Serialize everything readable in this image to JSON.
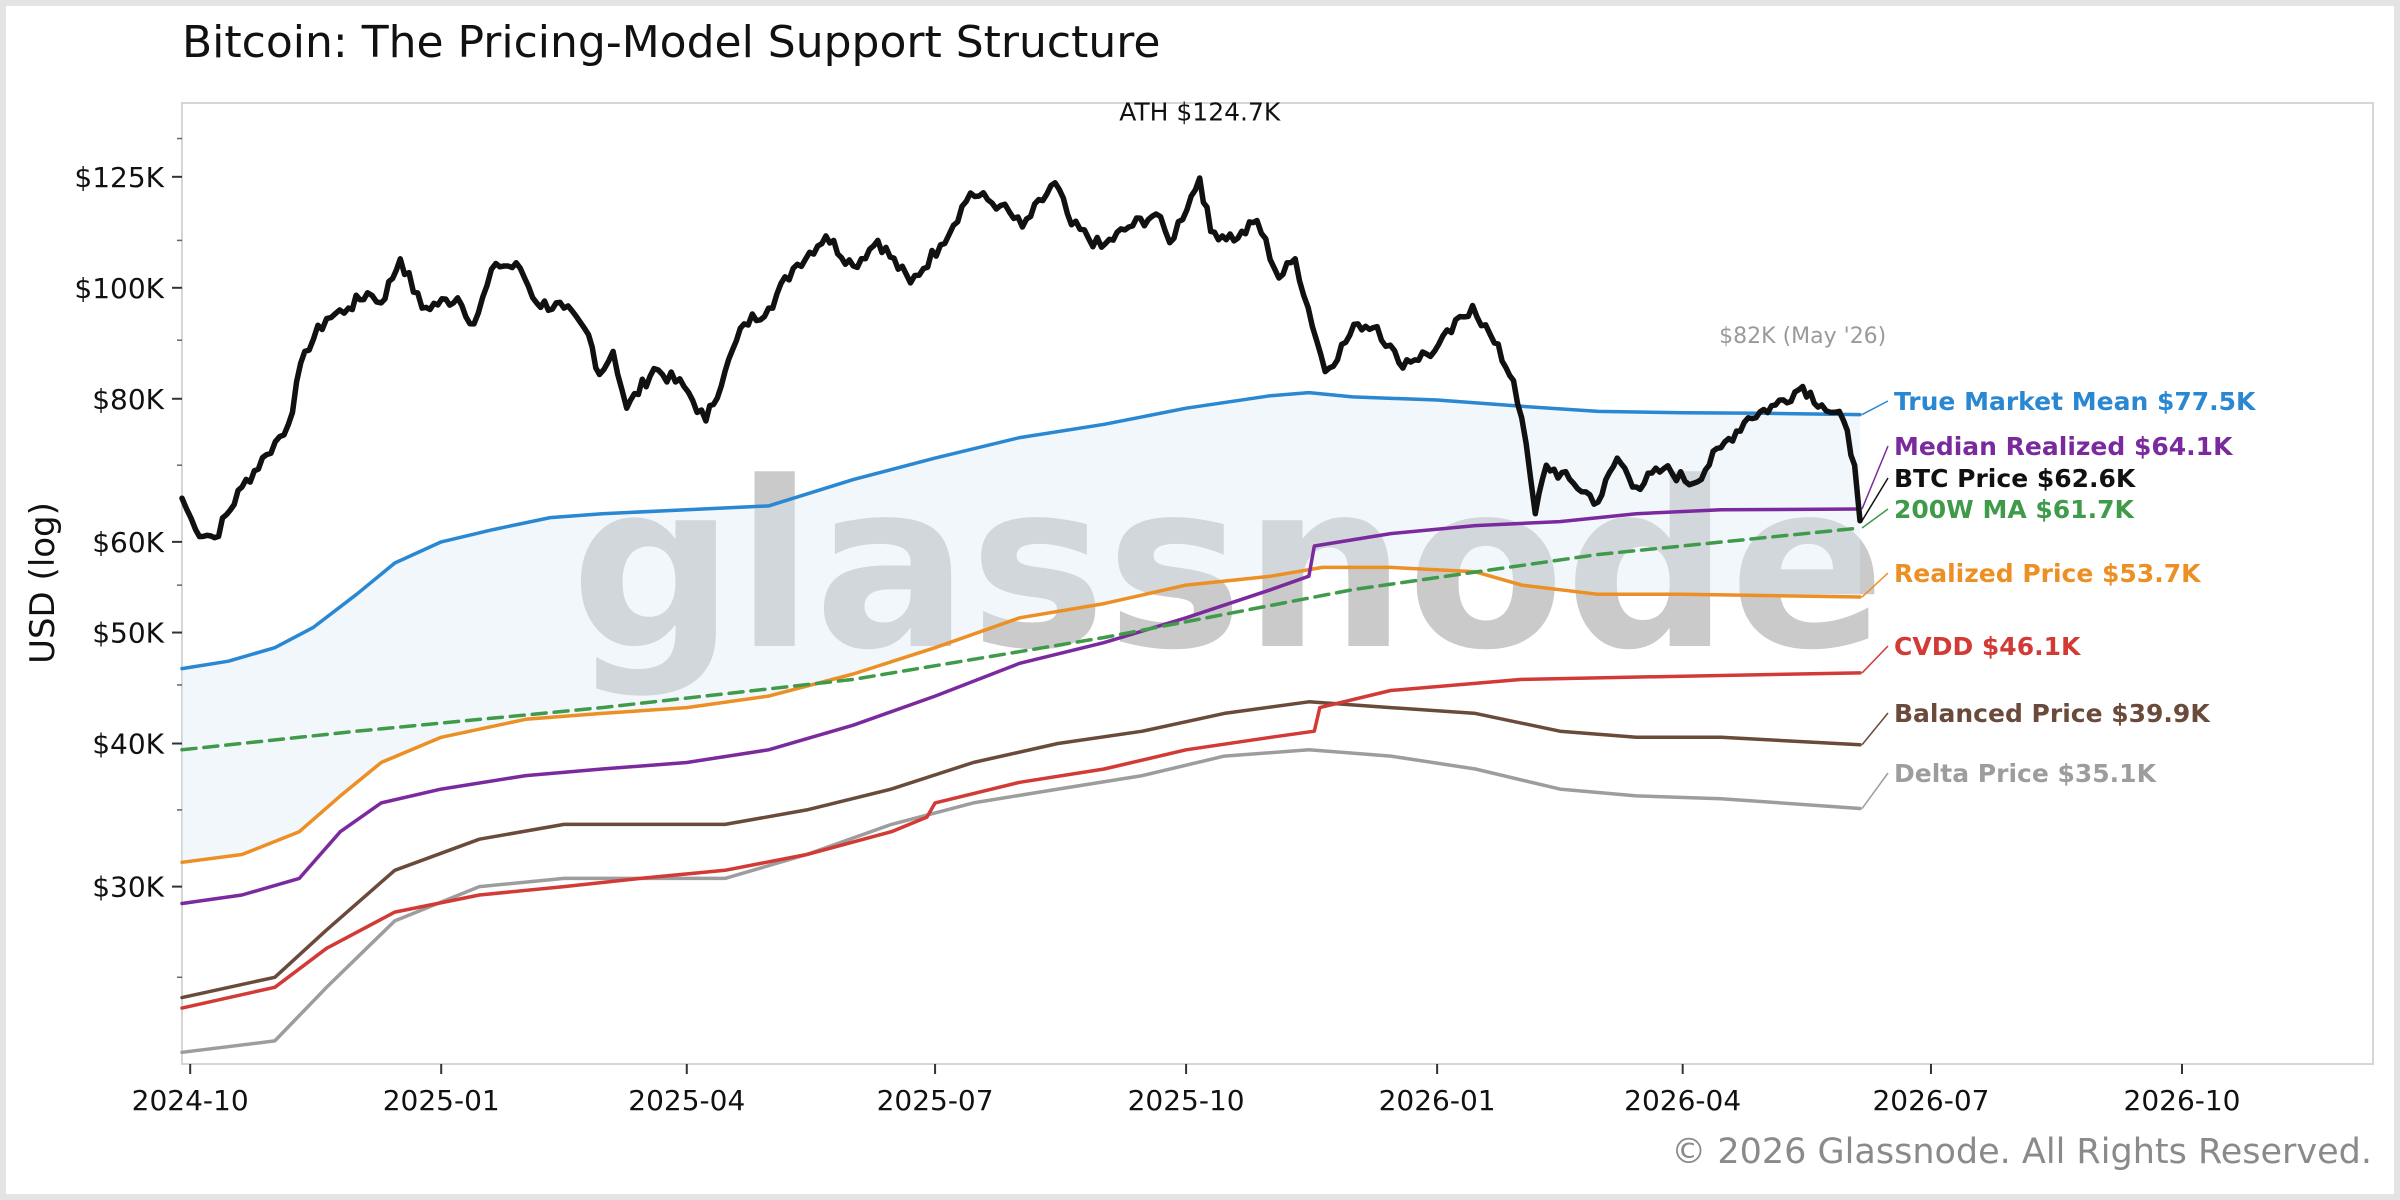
{
  "chart_data": {
    "type": "line",
    "title": "Bitcoin: The Pricing-Model Support Structure",
    "ylabel": "USD (log)",
    "xlabel": "",
    "y_scale": "log",
    "ylim": [
      21000,
      145000
    ],
    "xlim": [
      "2024-09-28",
      "2026-12-10"
    ],
    "grid": false,
    "watermark": "glassnode",
    "copyright": "© 2026 Glassnode. All Rights Reserved.",
    "y_ticks": [
      {
        "value": 30000,
        "label": "$30K"
      },
      {
        "value": 40000,
        "label": "$40K"
      },
      {
        "value": 50000,
        "label": "$50K"
      },
      {
        "value": 60000,
        "label": "$60K"
      },
      {
        "value": 80000,
        "label": "$80K"
      },
      {
        "value": 100000,
        "label": "$100K"
      },
      {
        "value": 125000,
        "label": "$125K"
      }
    ],
    "x_ticks": [
      {
        "date": "2024-10-01",
        "label": "2024-10"
      },
      {
        "date": "2025-01-01",
        "label": "2025-01"
      },
      {
        "date": "2025-04-01",
        "label": "2025-04"
      },
      {
        "date": "2025-07-01",
        "label": "2025-07"
      },
      {
        "date": "2025-10-01",
        "label": "2025-10"
      },
      {
        "date": "2026-01-01",
        "label": "2026-01"
      },
      {
        "date": "2026-04-01",
        "label": "2026-04"
      },
      {
        "date": "2026-07-01",
        "label": "2026-07"
      },
      {
        "date": "2026-10-01",
        "label": "2026-10"
      }
    ],
    "annotations": [
      {
        "text": "ATH $124.7K",
        "x": "2025-10-06",
        "y": 140000,
        "color": "#111111"
      },
      {
        "text": "$82K (May '26)",
        "x": "2026-05-15",
        "y": 89500,
        "color": "#9a9a9a"
      }
    ],
    "band": {
      "upper": "True Market Mean",
      "lower": "Realized Price",
      "color": "#dceaf6"
    },
    "series": [
      {
        "name": "True Market Mean",
        "end_label": "True Market Mean $77.5K",
        "color": "#2a87d2",
        "style": "solid",
        "points": [
          [
            "2024-09-28",
            46500
          ],
          [
            "2024-10-15",
            47200
          ],
          [
            "2024-11-01",
            48500
          ],
          [
            "2024-11-15",
            50500
          ],
          [
            "2024-12-01",
            54000
          ],
          [
            "2024-12-15",
            57500
          ],
          [
            "2025-01-01",
            60000
          ],
          [
            "2025-01-20",
            61500
          ],
          [
            "2025-02-10",
            63000
          ],
          [
            "2025-03-01",
            63500
          ],
          [
            "2025-04-01",
            64000
          ],
          [
            "2025-05-01",
            64500
          ],
          [
            "2025-06-01",
            68000
          ],
          [
            "2025-07-01",
            71000
          ],
          [
            "2025-08-01",
            74000
          ],
          [
            "2025-09-01",
            76000
          ],
          [
            "2025-10-01",
            78500
          ],
          [
            "2025-11-01",
            80500
          ],
          [
            "2025-11-15",
            81000
          ],
          [
            "2025-12-01",
            80300
          ],
          [
            "2026-01-01",
            79800
          ],
          [
            "2026-02-01",
            78800
          ],
          [
            "2026-03-01",
            78000
          ],
          [
            "2026-04-01",
            77800
          ],
          [
            "2026-05-01",
            77700
          ],
          [
            "2026-06-05",
            77500
          ]
        ]
      },
      {
        "name": "Median Realized",
        "end_label": "Median Realized $64.1K",
        "color": "#7b2a9e",
        "style": "solid",
        "points": [
          [
            "2024-09-28",
            29000
          ],
          [
            "2024-10-20",
            29500
          ],
          [
            "2024-11-10",
            30500
          ],
          [
            "2024-11-25",
            33500
          ],
          [
            "2024-12-10",
            35500
          ],
          [
            "2025-01-01",
            36500
          ],
          [
            "2025-02-01",
            37500
          ],
          [
            "2025-03-01",
            38000
          ],
          [
            "2025-04-01",
            38500
          ],
          [
            "2025-05-01",
            39500
          ],
          [
            "2025-06-01",
            41500
          ],
          [
            "2025-07-01",
            44000
          ],
          [
            "2025-08-01",
            47000
          ],
          [
            "2025-09-01",
            49000
          ],
          [
            "2025-10-01",
            51500
          ],
          [
            "2025-11-01",
            54500
          ],
          [
            "2025-11-15",
            56000
          ],
          [
            "2025-11-17",
            59500
          ],
          [
            "2025-12-15",
            61000
          ],
          [
            "2026-01-15",
            62000
          ],
          [
            "2026-02-15",
            62500
          ],
          [
            "2026-03-15",
            63500
          ],
          [
            "2026-04-15",
            64000
          ],
          [
            "2026-06-05",
            64100
          ]
        ]
      },
      {
        "name": "BTC Price",
        "end_label": "BTC Price $62.6K",
        "color": "#111111",
        "style": "solid",
        "points": [
          [
            "2024-09-28",
            65500
          ],
          [
            "2024-10-03",
            61500
          ],
          [
            "2024-10-10",
            60500
          ],
          [
            "2024-10-20",
            67000
          ],
          [
            "2024-10-29",
            71500
          ],
          [
            "2024-11-06",
            76000
          ],
          [
            "2024-11-12",
            88000
          ],
          [
            "2024-11-20",
            94000
          ],
          [
            "2024-11-28",
            96000
          ],
          [
            "2024-12-05",
            99000
          ],
          [
            "2024-12-10",
            97000
          ],
          [
            "2024-12-17",
            106000
          ],
          [
            "2024-12-25",
            96000
          ],
          [
            "2025-01-07",
            98000
          ],
          [
            "2025-01-13",
            93000
          ],
          [
            "2025-01-21",
            105000
          ],
          [
            "2025-01-30",
            104000
          ],
          [
            "2025-02-05",
            97000
          ],
          [
            "2025-02-15",
            96000
          ],
          [
            "2025-02-24",
            91000
          ],
          [
            "2025-02-28",
            84000
          ],
          [
            "2025-03-05",
            88000
          ],
          [
            "2025-03-10",
            78500
          ],
          [
            "2025-03-20",
            85000
          ],
          [
            "2025-03-31",
            82000
          ],
          [
            "2025-04-08",
            76500
          ],
          [
            "2025-04-15",
            84500
          ],
          [
            "2025-04-22",
            93000
          ],
          [
            "2025-05-01",
            96000
          ],
          [
            "2025-05-10",
            104000
          ],
          [
            "2025-05-22",
            111000
          ],
          [
            "2025-06-01",
            104500
          ],
          [
            "2025-06-10",
            110000
          ],
          [
            "2025-06-22",
            101000
          ],
          [
            "2025-07-03",
            109000
          ],
          [
            "2025-07-14",
            121000
          ],
          [
            "2025-07-25",
            118000
          ],
          [
            "2025-08-02",
            113000
          ],
          [
            "2025-08-14",
            123500
          ],
          [
            "2025-08-20",
            113500
          ],
          [
            "2025-08-31",
            108500
          ],
          [
            "2025-09-10",
            113000
          ],
          [
            "2025-09-20",
            116000
          ],
          [
            "2025-09-25",
            109500
          ],
          [
            "2025-10-06",
            124700
          ],
          [
            "2025-10-10",
            112000
          ],
          [
            "2025-10-20",
            110500
          ],
          [
            "2025-10-27",
            114500
          ],
          [
            "2025-11-04",
            102000
          ],
          [
            "2025-11-10",
            106000
          ],
          [
            "2025-11-21",
            84500
          ],
          [
            "2025-12-03",
            93000
          ],
          [
            "2025-12-10",
            92500
          ],
          [
            "2025-12-18",
            86000
          ],
          [
            "2025-12-31",
            88000
          ],
          [
            "2026-01-14",
            96500
          ],
          [
            "2026-01-22",
            89500
          ],
          [
            "2026-01-29",
            83000
          ],
          [
            "2026-02-01",
            77000
          ],
          [
            "2026-02-06",
            63500
          ],
          [
            "2026-02-10",
            70000
          ],
          [
            "2026-02-20",
            67500
          ],
          [
            "2026-03-01",
            65000
          ],
          [
            "2026-03-08",
            71000
          ],
          [
            "2026-03-15",
            67000
          ],
          [
            "2026-03-25",
            69500
          ],
          [
            "2026-04-05",
            67500
          ],
          [
            "2026-04-15",
            72500
          ],
          [
            "2026-04-25",
            77000
          ],
          [
            "2026-05-05",
            79000
          ],
          [
            "2026-05-15",
            82000
          ],
          [
            "2026-05-22",
            79000
          ],
          [
            "2026-05-30",
            76500
          ],
          [
            "2026-06-03",
            70000
          ],
          [
            "2026-06-05",
            62600
          ]
        ]
      },
      {
        "name": "200W MA",
        "end_label": "200W MA $61.7K",
        "color": "#3f9a4a",
        "style": "dashed",
        "points": [
          [
            "2024-09-28",
            39500
          ],
          [
            "2024-12-01",
            41000
          ],
          [
            "2025-03-01",
            43000
          ],
          [
            "2025-06-01",
            45500
          ],
          [
            "2025-09-01",
            49500
          ],
          [
            "2025-12-01",
            54500
          ],
          [
            "2026-03-01",
            58500
          ],
          [
            "2026-06-05",
            61700
          ]
        ]
      },
      {
        "name": "Realized Price",
        "end_label": "Realized Price $53.7K",
        "color": "#ec8f25",
        "style": "solid",
        "points": [
          [
            "2024-09-28",
            31500
          ],
          [
            "2024-10-20",
            32000
          ],
          [
            "2024-11-10",
            33500
          ],
          [
            "2024-11-25",
            36000
          ],
          [
            "2024-12-10",
            38500
          ],
          [
            "2025-01-01",
            40500
          ],
          [
            "2025-02-01",
            42000
          ],
          [
            "2025-03-01",
            42500
          ],
          [
            "2025-04-01",
            43000
          ],
          [
            "2025-05-01",
            44000
          ],
          [
            "2025-06-01",
            46000
          ],
          [
            "2025-07-01",
            48500
          ],
          [
            "2025-08-01",
            51500
          ],
          [
            "2025-09-01",
            53000
          ],
          [
            "2025-10-01",
            55000
          ],
          [
            "2025-11-01",
            56000
          ],
          [
            "2025-11-20",
            57000
          ],
          [
            "2025-12-15",
            57000
          ],
          [
            "2026-01-15",
            56500
          ],
          [
            "2026-02-01",
            55000
          ],
          [
            "2026-03-01",
            54000
          ],
          [
            "2026-04-01",
            54000
          ],
          [
            "2026-06-05",
            53700
          ]
        ]
      },
      {
        "name": "CVDD",
        "end_label": "CVDD $46.1K",
        "color": "#d23a36",
        "style": "solid",
        "points": [
          [
            "2024-09-28",
            23500
          ],
          [
            "2024-11-01",
            24500
          ],
          [
            "2024-11-20",
            26500
          ],
          [
            "2024-12-15",
            28500
          ],
          [
            "2025-01-15",
            29500
          ],
          [
            "2025-02-15",
            30000
          ],
          [
            "2025-03-15",
            30500
          ],
          [
            "2025-04-15",
            31000
          ],
          [
            "2025-05-15",
            32000
          ],
          [
            "2025-06-15",
            33500
          ],
          [
            "2025-06-28",
            34500
          ],
          [
            "2025-07-01",
            35500
          ],
          [
            "2025-08-01",
            37000
          ],
          [
            "2025-09-01",
            38000
          ],
          [
            "2025-10-01",
            39500
          ],
          [
            "2025-11-01",
            40500
          ],
          [
            "2025-11-17",
            41000
          ],
          [
            "2025-11-19",
            43000
          ],
          [
            "2025-12-15",
            44500
          ],
          [
            "2026-02-01",
            45500
          ],
          [
            "2026-04-01",
            45800
          ],
          [
            "2026-06-05",
            46100
          ]
        ]
      },
      {
        "name": "Balanced Price",
        "end_label": "Balanced Price $39.9K",
        "color": "#6a4a3a",
        "style": "solid",
        "points": [
          [
            "2024-09-28",
            24000
          ],
          [
            "2024-11-01",
            25000
          ],
          [
            "2024-11-20",
            27500
          ],
          [
            "2024-12-15",
            31000
          ],
          [
            "2025-01-15",
            33000
          ],
          [
            "2025-02-15",
            34000
          ],
          [
            "2025-03-15",
            34000
          ],
          [
            "2025-04-15",
            34000
          ],
          [
            "2025-05-15",
            35000
          ],
          [
            "2025-06-15",
            36500
          ],
          [
            "2025-07-15",
            38500
          ],
          [
            "2025-08-15",
            40000
          ],
          [
            "2025-09-15",
            41000
          ],
          [
            "2025-10-15",
            42500
          ],
          [
            "2025-11-15",
            43500
          ],
          [
            "2025-12-15",
            43000
          ],
          [
            "2026-01-15",
            42500
          ],
          [
            "2026-02-15",
            41000
          ],
          [
            "2026-03-15",
            40500
          ],
          [
            "2026-04-15",
            40500
          ],
          [
            "2026-06-05",
            39900
          ]
        ]
      },
      {
        "name": "Delta Price",
        "end_label": "Delta Price $35.1K",
        "color": "#9d9d9d",
        "style": "solid",
        "points": [
          [
            "2024-09-28",
            21500
          ],
          [
            "2024-11-01",
            22000
          ],
          [
            "2024-11-20",
            24500
          ],
          [
            "2024-12-15",
            28000
          ],
          [
            "2025-01-15",
            30000
          ],
          [
            "2025-02-15",
            30500
          ],
          [
            "2025-03-15",
            30500
          ],
          [
            "2025-04-15",
            30500
          ],
          [
            "2025-05-15",
            32000
          ],
          [
            "2025-06-15",
            34000
          ],
          [
            "2025-07-15",
            35500
          ],
          [
            "2025-08-15",
            36500
          ],
          [
            "2025-09-15",
            37500
          ],
          [
            "2025-10-15",
            39000
          ],
          [
            "2025-11-15",
            39500
          ],
          [
            "2025-12-15",
            39000
          ],
          [
            "2026-01-15",
            38000
          ],
          [
            "2026-02-15",
            36500
          ],
          [
            "2026-03-15",
            36000
          ],
          [
            "2026-04-15",
            35800
          ],
          [
            "2026-06-05",
            35100
          ]
        ]
      }
    ]
  }
}
